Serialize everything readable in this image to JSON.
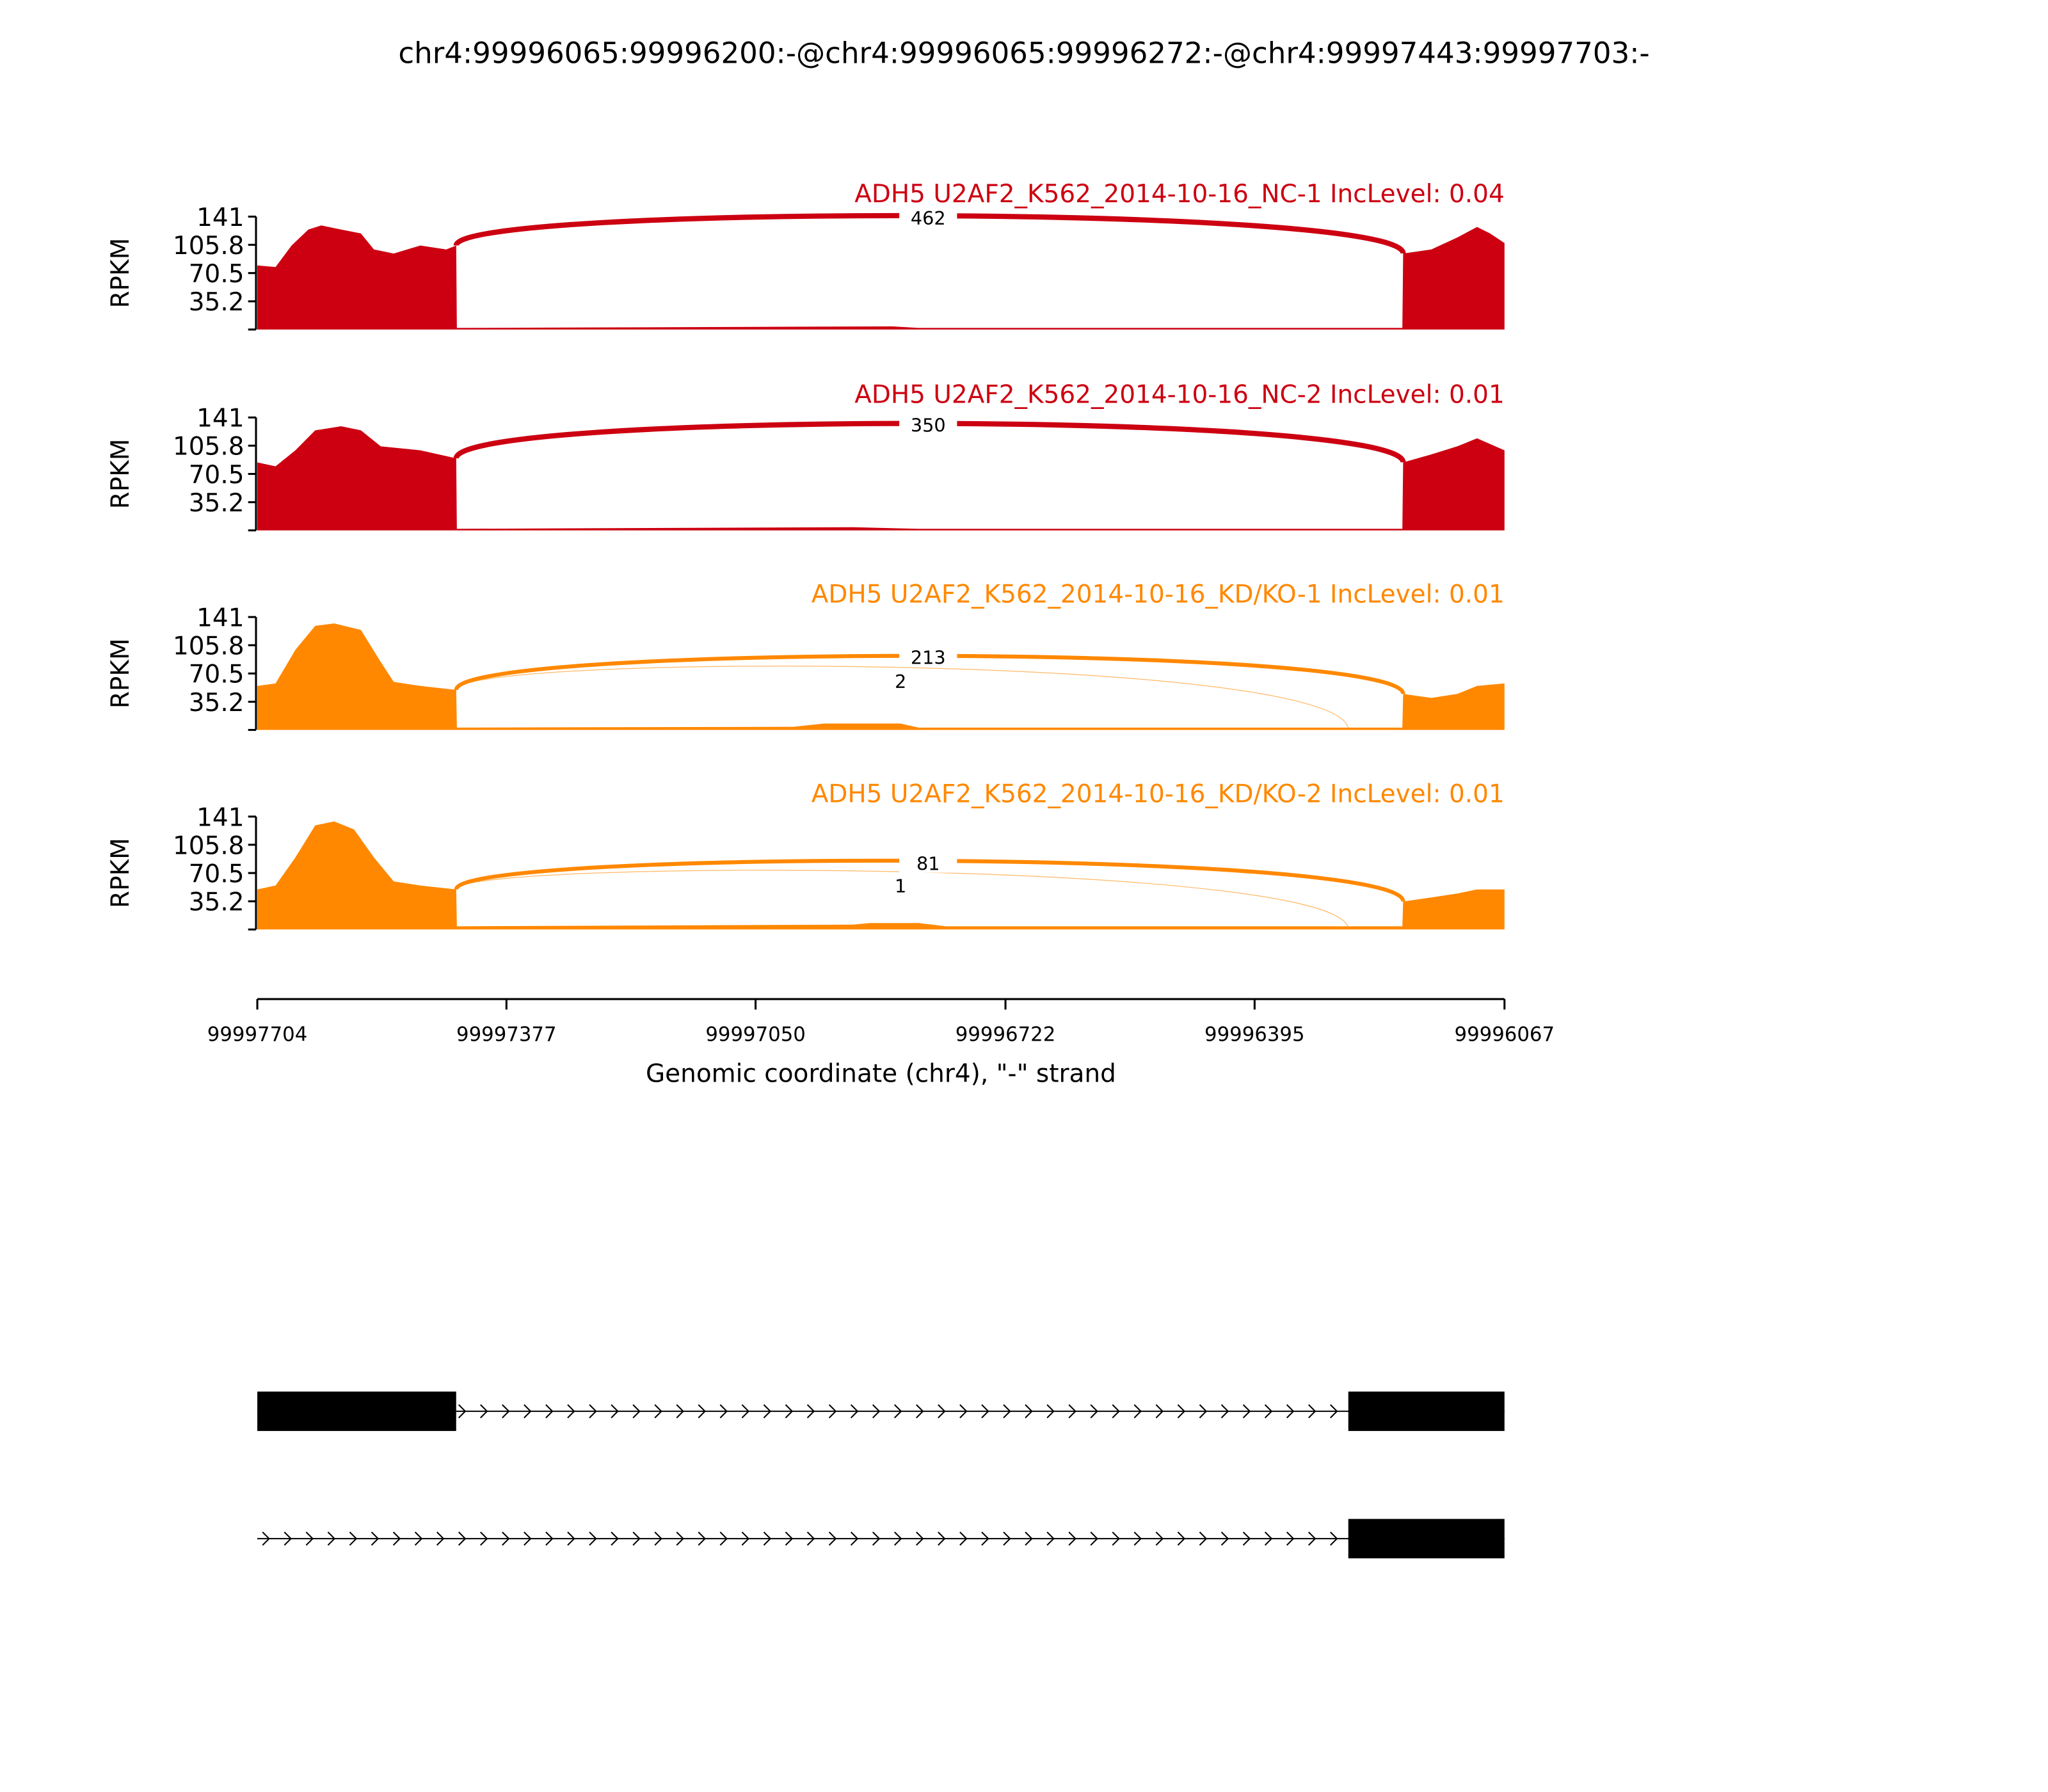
{
  "chart_data": {
    "type": "area",
    "title": "chr4:99996065:99996200:-@chr4:99996065:99996272:-@chr4:99997443:99997703:-",
    "xlabel": "Genomic coordinate (chr4), \"-\" strand",
    "ylabel": "RPKM",
    "xlim": [
      99997704,
      99996067
    ],
    "ylim": [
      0,
      141
    ],
    "xticks": [
      "99997704",
      "99997377",
      "99997050",
      "99996722",
      "99996395",
      "99996067"
    ],
    "yticks": [
      "141",
      "105.8",
      "70.5",
      "35.2"
    ],
    "colors": {
      "NC": "#cc0011",
      "KD": "#ff8800"
    },
    "panels": [
      {
        "label": "ADH5 U2AF2_K562_2014-10-16_NC-1 IncLevel: 0.04",
        "color": "#cc0011",
        "coverage": [
          [
            99997704,
            80
          ],
          [
            99997680,
            78
          ],
          [
            99997659,
            105
          ],
          [
            99997637,
            125
          ],
          [
            99997620,
            130
          ],
          [
            99997594,
            125
          ],
          [
            99997568,
            120
          ],
          [
            99997551,
            100
          ],
          [
            99997525,
            95
          ],
          [
            99997490,
            105
          ],
          [
            99997456,
            100
          ],
          [
            99997443,
            105
          ],
          [
            99997442,
            2
          ],
          [
            99996870,
            4
          ],
          [
            99996836,
            2
          ],
          [
            99996201,
            2
          ],
          [
            99996200,
            95
          ],
          [
            99996163,
            100
          ],
          [
            99996129,
            115
          ],
          [
            99996103,
            128
          ],
          [
            99996086,
            120
          ],
          [
            99996067,
            108
          ]
        ],
        "junctions": [
          {
            "start": 99997443,
            "end": 99996200,
            "count": "462"
          }
        ]
      },
      {
        "label": "ADH5 U2AF2_K562_2014-10-16_NC-2 IncLevel: 0.01",
        "color": "#cc0011",
        "coverage": [
          [
            99997704,
            85
          ],
          [
            99997680,
            80
          ],
          [
            99997654,
            100
          ],
          [
            99997628,
            125
          ],
          [
            99997594,
            130
          ],
          [
            99997568,
            125
          ],
          [
            99997542,
            105
          ],
          [
            99997490,
            100
          ],
          [
            99997443,
            90
          ],
          [
            99997442,
            2
          ],
          [
            99996922,
            4
          ],
          [
            99996836,
            2
          ],
          [
            99996201,
            2
          ],
          [
            99996200,
            85
          ],
          [
            99996163,
            95
          ],
          [
            99996129,
            105
          ],
          [
            99996103,
            115
          ],
          [
            99996067,
            100
          ]
        ],
        "junctions": [
          {
            "start": 99997443,
            "end": 99996200,
            "count": "350"
          }
        ]
      },
      {
        "label": "ADH5 U2AF2_K562_2014-10-16_KD/KO-1 IncLevel: 0.01",
        "color": "#ff8800",
        "coverage": [
          [
            99997704,
            55
          ],
          [
            99997680,
            58
          ],
          [
            99997654,
            100
          ],
          [
            99997628,
            130
          ],
          [
            99997603,
            133
          ],
          [
            99997568,
            125
          ],
          [
            99997542,
            85
          ],
          [
            99997525,
            60
          ],
          [
            99997490,
            55
          ],
          [
            99997443,
            50
          ],
          [
            99997442,
            3
          ],
          [
            99997000,
            4
          ],
          [
            99996960,
            8
          ],
          [
            99996860,
            8
          ],
          [
            99996836,
            3
          ],
          [
            99996201,
            3
          ],
          [
            99996200,
            45
          ],
          [
            99996163,
            40
          ],
          [
            99996129,
            45
          ],
          [
            99996103,
            55
          ],
          [
            99996067,
            58
          ]
        ],
        "junctions": [
          {
            "start": 99997443,
            "end": 99996200,
            "count": "213"
          },
          {
            "start": 99997443,
            "end": 99996272,
            "count": "2"
          }
        ]
      },
      {
        "label": "ADH5 U2AF2_K562_2014-10-16_KD/KO-2 IncLevel: 0.01",
        "color": "#ff8800",
        "coverage": [
          [
            99997704,
            50
          ],
          [
            99997680,
            55
          ],
          [
            99997654,
            90
          ],
          [
            99997628,
            130
          ],
          [
            99997603,
            135
          ],
          [
            99997577,
            125
          ],
          [
            99997551,
            90
          ],
          [
            99997525,
            60
          ],
          [
            99997490,
            55
          ],
          [
            99997443,
            50
          ],
          [
            99997442,
            4
          ],
          [
            99996922,
            6
          ],
          [
            99996900,
            8
          ],
          [
            99996836,
            8
          ],
          [
            99996800,
            4
          ],
          [
            99996201,
            4
          ],
          [
            99996200,
            35
          ],
          [
            99996163,
            40
          ],
          [
            99996129,
            45
          ],
          [
            99996103,
            50
          ],
          [
            99996067,
            50
          ]
        ],
        "junctions": [
          {
            "start": 99997443,
            "end": 99996200,
            "count": "81"
          },
          {
            "start": 99997443,
            "end": 99996272,
            "count": "1"
          }
        ]
      }
    ],
    "gene_models": [
      {
        "exons": [
          [
            99997704,
            99997443
          ],
          [
            99996272,
            99996067
          ]
        ]
      },
      {
        "exons": [
          [
            99996272,
            99996067
          ]
        ]
      }
    ]
  }
}
